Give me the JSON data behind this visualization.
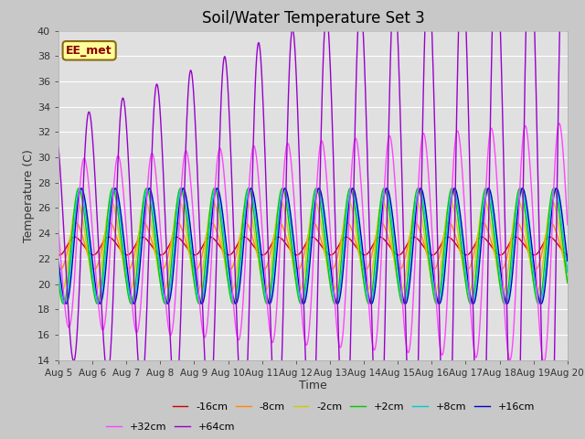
{
  "title": "Soil/Water Temperature Set 3",
  "xlabel": "Time",
  "ylabel": "Temperature (C)",
  "ylim": [
    14,
    40
  ],
  "background_color": "#c8c8c8",
  "plot_bg_color": "#e0e0e0",
  "grid_color": "#ffffff",
  "annotation_text": "EE_met",
  "annotation_bg": "#ffff99",
  "annotation_border": "#8b6914",
  "x_tick_labels": [
    "Aug 5",
    "Aug 6",
    "Aug 7",
    "Aug 8",
    "Aug 9",
    "Aug 10",
    "Aug 11",
    "Aug 12",
    "Aug 13",
    "Aug 14",
    "Aug 15",
    "Aug 16",
    "Aug 17",
    "Aug 18",
    "Aug 19",
    "Aug 20"
  ],
  "series": [
    {
      "label": "-16cm",
      "color": "#cc0000",
      "amplitude": 0.7,
      "phase": 0.0,
      "mean": 23.0,
      "amp_growth": 0.0
    },
    {
      "label": "-8cm",
      "color": "#ff8800",
      "amplitude": 1.8,
      "phase": 0.04,
      "mean": 23.0,
      "amp_growth": 0.0
    },
    {
      "label": "-2cm",
      "color": "#cccc00",
      "amplitude": 3.5,
      "phase": 0.08,
      "mean": 23.0,
      "amp_growth": 0.0
    },
    {
      "label": "+2cm",
      "color": "#00cc00",
      "amplitude": 4.5,
      "phase": 0.12,
      "mean": 23.0,
      "amp_growth": 0.0
    },
    {
      "label": "+8cm",
      "color": "#00cccc",
      "amplitude": 4.5,
      "phase": 0.16,
      "mean": 23.0,
      "amp_growth": 0.0
    },
    {
      "label": "+16cm",
      "color": "#0000cc",
      "amplitude": 4.5,
      "phase": 0.2,
      "mean": 23.0,
      "amp_growth": 0.0
    },
    {
      "label": "+32cm",
      "color": "#ff44ff",
      "amplitude": 6.5,
      "phase": 0.28,
      "mean": 23.2,
      "amp_growth": 0.03
    },
    {
      "label": "+64cm",
      "color": "#9900cc",
      "amplitude": 9.0,
      "phase": 0.42,
      "mean": 23.5,
      "amp_growth": 0.12
    }
  ]
}
